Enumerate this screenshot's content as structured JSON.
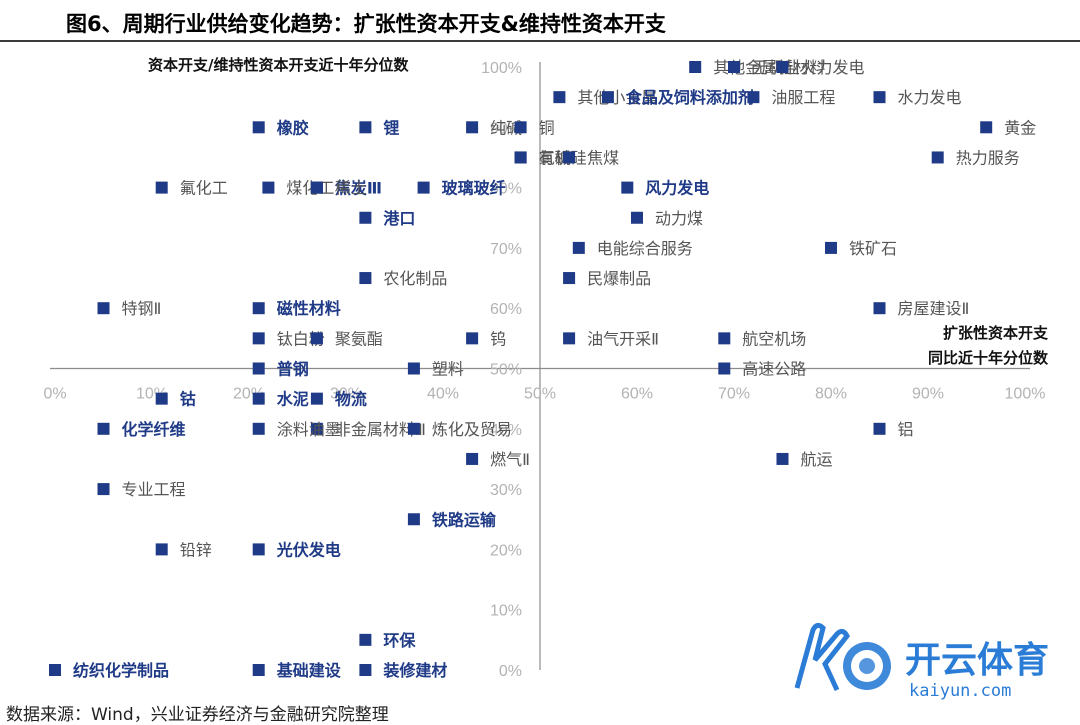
{
  "title": "图6、周期行业供给变化趋势：扩张性资本开支&维持性资本开支",
  "source": "数据来源：Wind，兴业证券经济与金融研究院整理",
  "watermark": {
    "cn": "开云体育",
    "en": "kaiyun.com"
  },
  "colors": {
    "marker": "#1f3a86",
    "axis": "#8c8c8c",
    "tick": "#b3b3b3",
    "label": "#555555",
    "bold_label": "#1f3a86"
  },
  "chart_data": {
    "type": "scatter",
    "xlabel": "扩张性资本开支\n同比近十年分位数",
    "ylabel": "资本开支/维持性资本开支近十年分位数",
    "xlim": [
      0,
      100
    ],
    "ylim": [
      0,
      100
    ],
    "x_ticks": [
      "0%",
      "10%",
      "20%",
      "30%",
      "40%",
      "50%",
      "60%",
      "70%",
      "80%",
      "90%",
      "100%"
    ],
    "y_ticks": [
      "0%",
      "10%",
      "20%",
      "30%",
      "40%",
      "50%",
      "60%",
      "70%",
      "80%",
      "90%",
      "100%"
    ],
    "points": [
      {
        "label": "其他金属新材料",
        "x": 66,
        "y": 100,
        "bold": false
      },
      {
        "label": "无机盐",
        "x": 70,
        "y": 100,
        "bold": false
      },
      {
        "label": "火力发电",
        "x": 75,
        "y": 100,
        "bold": false
      },
      {
        "label": "其他小金属",
        "x": 52,
        "y": 95,
        "bold": false
      },
      {
        "label": "食品及饲料添加剂",
        "x": 57,
        "y": 95,
        "bold": true
      },
      {
        "label": "油服工程",
        "x": 72,
        "y": 95,
        "bold": false
      },
      {
        "label": "水力发电",
        "x": 85,
        "y": 95,
        "bold": false
      },
      {
        "label": "橡胶",
        "x": 21,
        "y": 90,
        "bold": true
      },
      {
        "label": "锂",
        "x": 32,
        "y": 90,
        "bold": true
      },
      {
        "label": "纯碱",
        "x": 43,
        "y": 90,
        "bold": false
      },
      {
        "label": "铜",
        "x": 48,
        "y": 90,
        "bold": false
      },
      {
        "label": "氯碱",
        "x": 48,
        "y": 85,
        "bold": false
      },
      {
        "label": "黄金",
        "x": 96,
        "y": 90,
        "bold": false
      },
      {
        "label": "有机硅",
        "x": 48,
        "y": 85,
        "bold": false
      },
      {
        "label": "焦煤",
        "x": 53,
        "y": 85,
        "bold": false
      },
      {
        "label": "热力服务",
        "x": 91,
        "y": 85,
        "bold": false
      },
      {
        "label": "氟化工",
        "x": 11,
        "y": 80,
        "bold": false
      },
      {
        "label": "煤化工",
        "x": 22,
        "y": 80,
        "bold": false
      },
      {
        "label": "焦炭Ⅲ",
        "x": 27,
        "y": 80,
        "bold": true
      },
      {
        "label": "稀土",
        "x": 27,
        "y": 80,
        "bold": false
      },
      {
        "label": "玻璃玻纤",
        "x": 38,
        "y": 80,
        "bold": true
      },
      {
        "label": "风力发电",
        "x": 59,
        "y": 80,
        "bold": true
      },
      {
        "label": "港口",
        "x": 32,
        "y": 75,
        "bold": true
      },
      {
        "label": "动力煤",
        "x": 60,
        "y": 75,
        "bold": false
      },
      {
        "label": "电能综合服务",
        "x": 54,
        "y": 70,
        "bold": false
      },
      {
        "label": "铁矿石",
        "x": 80,
        "y": 70,
        "bold": false
      },
      {
        "label": "农化制品",
        "x": 32,
        "y": 65,
        "bold": false
      },
      {
        "label": "民爆制品",
        "x": 53,
        "y": 65,
        "bold": false
      },
      {
        "label": "特钢Ⅱ",
        "x": 5,
        "y": 60,
        "bold": false
      },
      {
        "label": "磁性材料",
        "x": 21,
        "y": 60,
        "bold": true
      },
      {
        "label": "房屋建设Ⅱ",
        "x": 85,
        "y": 60,
        "bold": false
      },
      {
        "label": "钛白粉",
        "x": 21,
        "y": 55,
        "bold": false
      },
      {
        "label": "聚氨酯",
        "x": 27,
        "y": 55,
        "bold": false
      },
      {
        "label": "钨",
        "x": 43,
        "y": 55,
        "bold": false
      },
      {
        "label": "油气开采Ⅱ",
        "x": 53,
        "y": 55,
        "bold": false
      },
      {
        "label": "航空机场",
        "x": 69,
        "y": 55,
        "bold": false
      },
      {
        "label": "普钢",
        "x": 21,
        "y": 50,
        "bold": true
      },
      {
        "label": "塑料",
        "x": 37,
        "y": 50,
        "bold": false
      },
      {
        "label": "高速公路",
        "x": 69,
        "y": 50,
        "bold": false
      },
      {
        "label": "钴",
        "x": 11,
        "y": 45,
        "bold": true
      },
      {
        "label": "水泥",
        "x": 21,
        "y": 45,
        "bold": true
      },
      {
        "label": "物流",
        "x": 27,
        "y": 45,
        "bold": true
      },
      {
        "label": "化学纤维",
        "x": 5,
        "y": 40,
        "bold": true
      },
      {
        "label": "非金属材料Ⅲ",
        "x": 27,
        "y": 40,
        "bold": false
      },
      {
        "label": "铝",
        "x": 85,
        "y": 40,
        "bold": false
      },
      {
        "label": "涂料油墨",
        "x": 21,
        "y": 40,
        "bold": false
      },
      {
        "label": "炼化及贸易",
        "x": 37,
        "y": 40,
        "bold": false
      },
      {
        "label": "燃气Ⅱ",
        "x": 43,
        "y": 35,
        "bold": false
      },
      {
        "label": "航运",
        "x": 75,
        "y": 35,
        "bold": false
      },
      {
        "label": "专业工程",
        "x": 5,
        "y": 30,
        "bold": false
      },
      {
        "label": "铁路运输",
        "x": 37,
        "y": 25,
        "bold": true
      },
      {
        "label": "铅锌",
        "x": 11,
        "y": 20,
        "bold": false
      },
      {
        "label": "光伏发电",
        "x": 21,
        "y": 20,
        "bold": true
      },
      {
        "label": "环保",
        "x": 32,
        "y": 5,
        "bold": true
      },
      {
        "label": "纺织化学制品",
        "x": 0,
        "y": 0,
        "bold": true
      },
      {
        "label": "基础建设",
        "x": 21,
        "y": 0,
        "bold": true
      },
      {
        "label": "装修建材",
        "x": 32,
        "y": 0,
        "bold": true
      }
    ]
  }
}
